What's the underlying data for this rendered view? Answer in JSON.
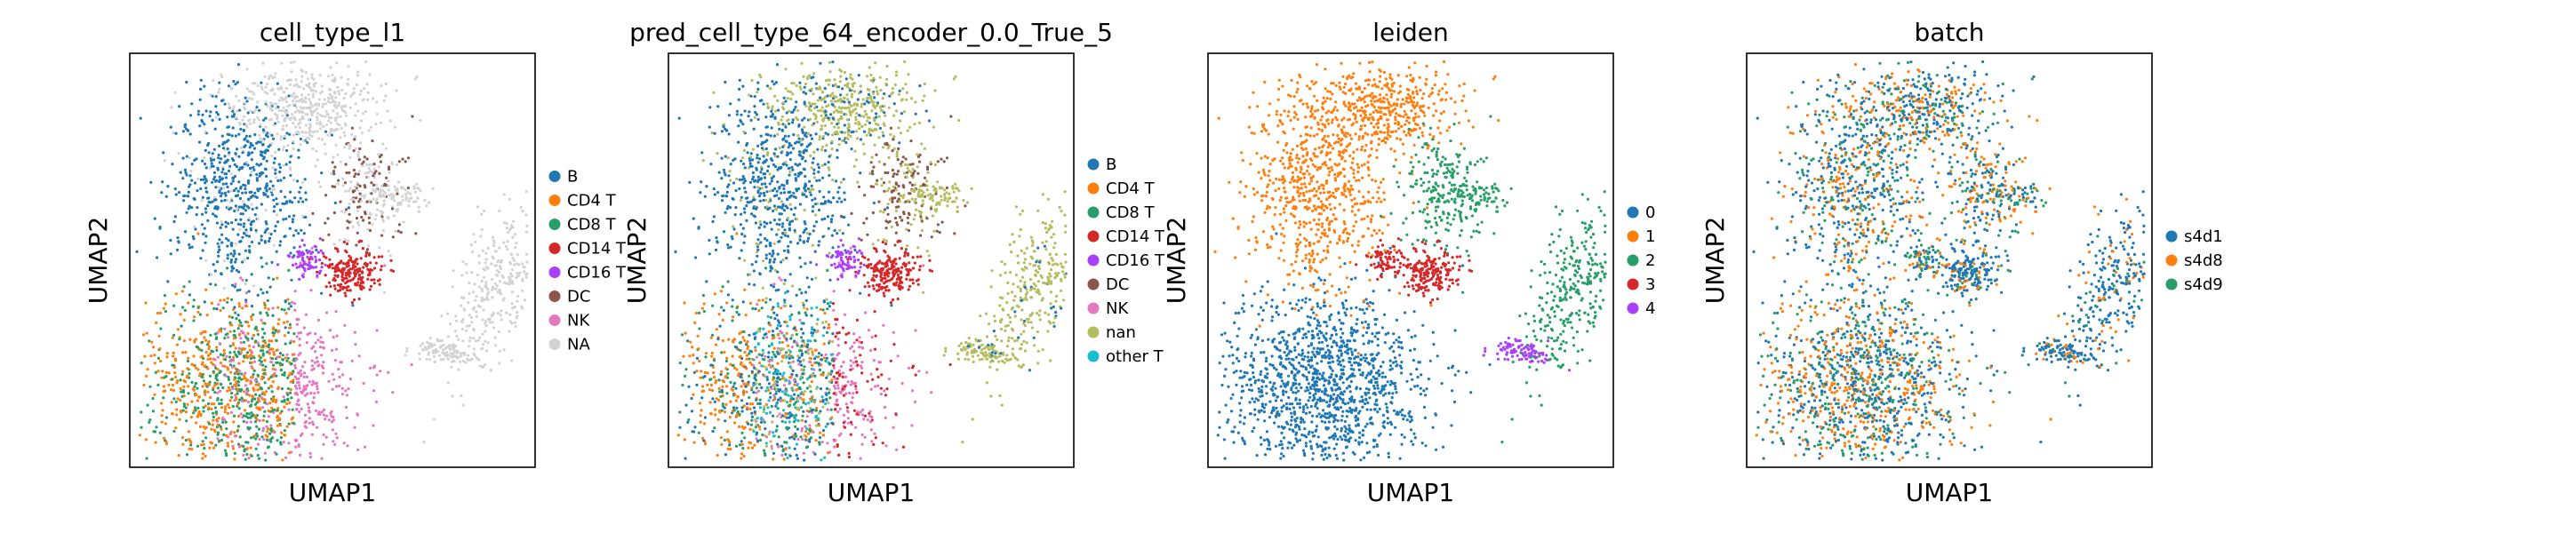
{
  "chart_data": [
    {
      "type": "scatter",
      "title": "cell_type_l1",
      "xlabel": "UMAP1",
      "ylabel": "UMAP2",
      "legend_position": "right",
      "grid": false,
      "categories": [
        "B",
        "CD4 T",
        "CD8 T",
        "CD14 T",
        "CD16 T",
        "DC",
        "NK",
        "NA"
      ],
      "colors": [
        "#1f77b4",
        "#ff7f0e",
        "#279e68",
        "#d62728",
        "#aa40fc",
        "#8c564b",
        "#e377c2",
        "#d3d3d3"
      ]
    },
    {
      "type": "scatter",
      "title": "pred_cell_type_64_encoder_0.0_True_5",
      "xlabel": "UMAP1",
      "ylabel": "UMAP2",
      "legend_position": "right",
      "grid": false,
      "categories": [
        "B",
        "CD4 T",
        "CD8 T",
        "CD14 T",
        "CD16 T",
        "DC",
        "NK",
        "nan",
        "other T"
      ],
      "colors": [
        "#1f77b4",
        "#ff7f0e",
        "#279e68",
        "#d62728",
        "#aa40fc",
        "#8c564b",
        "#e377c2",
        "#b5bd61",
        "#17becf"
      ]
    },
    {
      "type": "scatter",
      "title": "leiden",
      "xlabel": "UMAP1",
      "ylabel": "UMAP2",
      "legend_position": "right",
      "grid": false,
      "categories": [
        "0",
        "1",
        "2",
        "3",
        "4"
      ],
      "colors": [
        "#1f77b4",
        "#ff7f0e",
        "#279e68",
        "#d62728",
        "#aa40fc"
      ]
    },
    {
      "type": "scatter",
      "title": "batch",
      "xlabel": "UMAP1",
      "ylabel": "UMAP2",
      "legend_position": "right",
      "grid": false,
      "categories": [
        "s4d1",
        "s4d8",
        "s4d9"
      ],
      "colors": [
        "#1f77b4",
        "#ff7f0e",
        "#279e68"
      ]
    }
  ]
}
